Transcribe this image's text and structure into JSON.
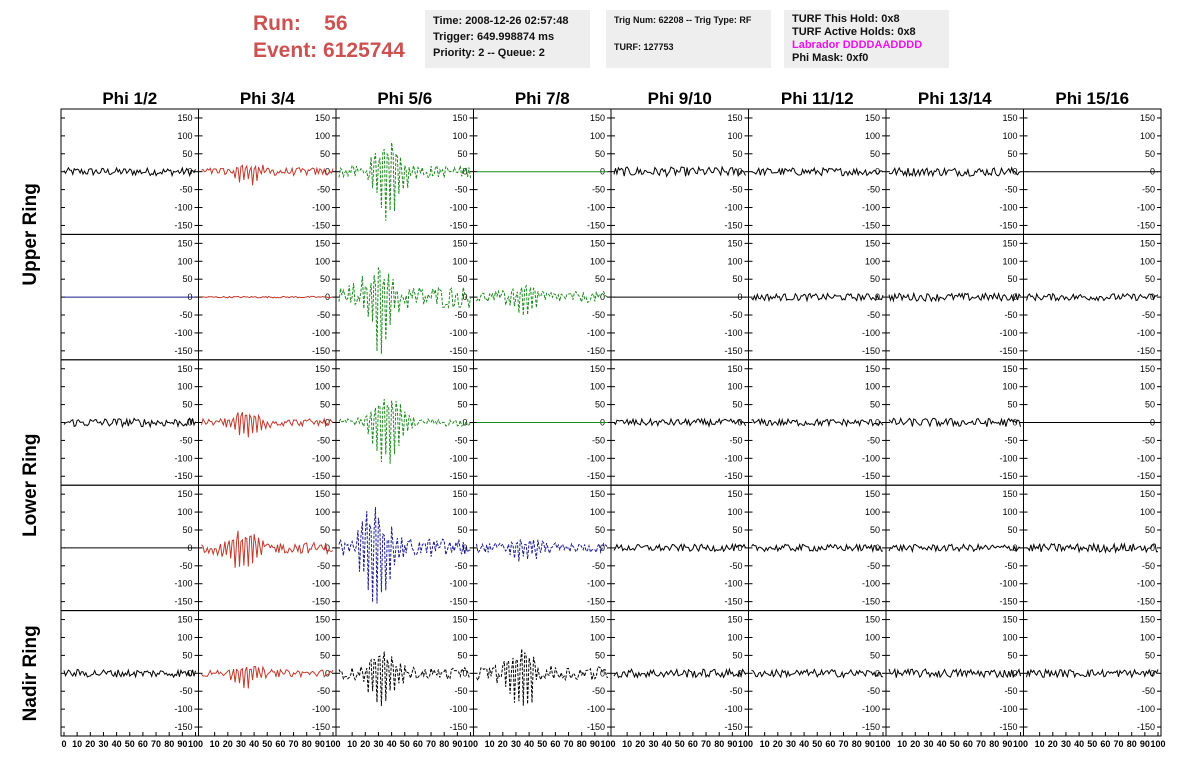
{
  "header": {
    "run_label": "Run:",
    "run_value": "56",
    "event_label": "Event:",
    "event_value": "6125744"
  },
  "info_time": {
    "time": "Time: 2008-12-26 02:57:48",
    "trigger": "Trigger: 649.998874 ms",
    "priority": "Priority: 2 -- Queue: 2"
  },
  "info_trig": {
    "trig": "Trig Num: 62208 -- Trig Type: RF",
    "turf": "TURF: 127753"
  },
  "info_turf": {
    "hold": "TURF This Hold: 0x8",
    "active": "TURF Active Holds: 0x8",
    "labrador": "Labrador DDDDAADDDD",
    "phimask": "Phi Mask: 0xf0"
  },
  "chart_data": {
    "type": "line",
    "columns": [
      "Phi 1/2",
      "Phi 3/4",
      "Phi 5/6",
      "Phi 7/8",
      "Phi 9/10",
      "Phi 11/12",
      "Phi 13/14",
      "Phi 15/16"
    ],
    "ring_labels": [
      "Upper Ring",
      "Lower Ring",
      "Nadir Ring"
    ],
    "ylim": [
      -175,
      175
    ],
    "xlim": [
      0,
      100
    ],
    "y_ticks": [
      150,
      100,
      50,
      0,
      -50,
      -100,
      -150
    ],
    "x_ticks": [
      0,
      10,
      20,
      30,
      40,
      50,
      60,
      70,
      80,
      90,
      100
    ],
    "colors": {
      "black": "#000000",
      "red": "#c0392b",
      "green": "#1f8a1f",
      "blue": "#1a1a8c",
      "frame": "#000000"
    },
    "rows": [
      [
        {
          "style": "black",
          "amp": 10,
          "pulse": 0,
          "center": 50
        },
        {
          "style": "red",
          "amp": 10,
          "pulse": 35,
          "center": 35
        },
        {
          "style": "green",
          "amp": 16,
          "pulse": 130,
          "center": 38
        },
        {
          "style": "green",
          "amp": 0,
          "pulse": 0,
          "center": 50
        },
        {
          "style": "black",
          "amp": 12,
          "pulse": 0,
          "center": 50
        },
        {
          "style": "black",
          "amp": 10,
          "pulse": 0,
          "center": 50
        },
        {
          "style": "black",
          "amp": 11,
          "pulse": 0,
          "center": 50
        },
        {
          "style": "black",
          "amp": 0,
          "pulse": 0,
          "center": 50
        }
      ],
      [
        {
          "style": "blue",
          "amp": 0,
          "pulse": 0,
          "center": 50
        },
        {
          "style": "red",
          "amp": 2,
          "pulse": 0,
          "center": 50
        },
        {
          "style": "green",
          "amp": 28,
          "pulse": 140,
          "center": 30
        },
        {
          "style": "green",
          "amp": 14,
          "pulse": 45,
          "center": 35
        },
        {
          "style": "black",
          "amp": 0,
          "pulse": 0,
          "center": 50
        },
        {
          "style": "black",
          "amp": 9,
          "pulse": 0,
          "center": 50
        },
        {
          "style": "black",
          "amp": 10,
          "pulse": 0,
          "center": 50
        },
        {
          "style": "black",
          "amp": 9,
          "pulse": 0,
          "center": 50
        }
      ],
      [
        {
          "style": "black",
          "amp": 11,
          "pulse": 0,
          "center": 50
        },
        {
          "style": "red",
          "amp": 9,
          "pulse": 45,
          "center": 35
        },
        {
          "style": "green",
          "amp": 9,
          "pulse": 120,
          "center": 37
        },
        {
          "style": "green",
          "amp": 0,
          "pulse": 0,
          "center": 50
        },
        {
          "style": "black",
          "amp": 9,
          "pulse": 0,
          "center": 50
        },
        {
          "style": "black",
          "amp": 9,
          "pulse": 0,
          "center": 50
        },
        {
          "style": "black",
          "amp": 11,
          "pulse": 0,
          "center": 50
        },
        {
          "style": "black",
          "amp": 0,
          "pulse": 0,
          "center": 50
        }
      ],
      [
        {
          "style": "black",
          "amp": 0,
          "pulse": 0,
          "center": 50
        },
        {
          "style": "red",
          "amp": 14,
          "pulse": 70,
          "center": 32
        },
        {
          "style": "blue",
          "amp": 24,
          "pulse": 160,
          "center": 28
        },
        {
          "style": "blue",
          "amp": 12,
          "pulse": 35,
          "center": 37
        },
        {
          "style": "black",
          "amp": 9,
          "pulse": 0,
          "center": 50
        },
        {
          "style": "black",
          "amp": 9,
          "pulse": 0,
          "center": 50
        },
        {
          "style": "black",
          "amp": 9,
          "pulse": 0,
          "center": 50
        },
        {
          "style": "black",
          "amp": 11,
          "pulse": 0,
          "center": 50
        }
      ],
      [
        {
          "style": "black",
          "amp": 10,
          "pulse": 0,
          "center": 50
        },
        {
          "style": "red",
          "amp": 9,
          "pulse": 35,
          "center": 35
        },
        {
          "style": "black",
          "amp": 14,
          "pulse": 100,
          "center": 33
        },
        {
          "style": "black",
          "amp": 18,
          "pulse": 100,
          "center": 35
        },
        {
          "style": "black",
          "amp": 11,
          "pulse": 0,
          "center": 50
        },
        {
          "style": "black",
          "amp": 10,
          "pulse": 0,
          "center": 50
        },
        {
          "style": "black",
          "amp": 11,
          "pulse": 0,
          "center": 50
        },
        {
          "style": "black",
          "amp": 10,
          "pulse": 0,
          "center": 50
        }
      ]
    ]
  }
}
